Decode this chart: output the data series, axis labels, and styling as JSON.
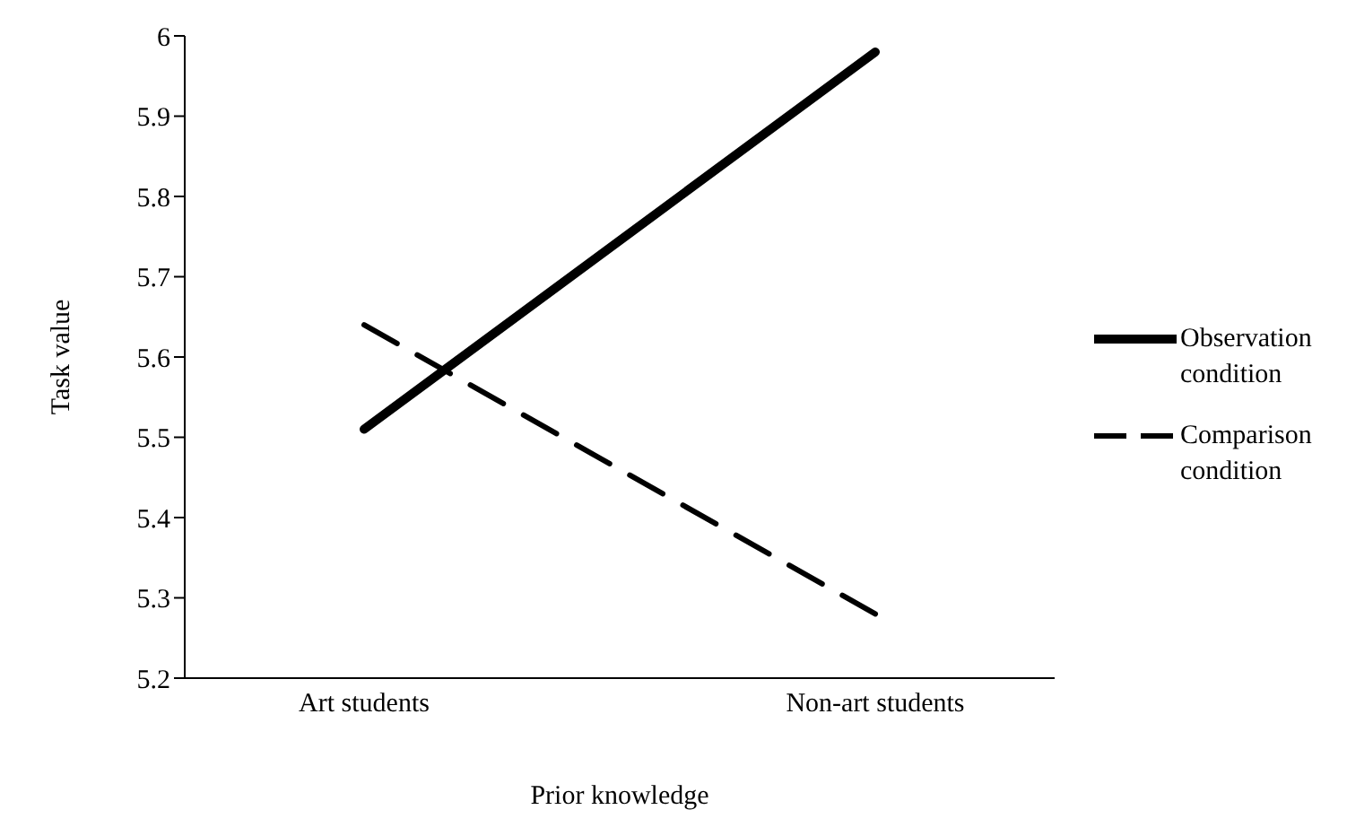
{
  "chart_data": {
    "type": "line",
    "xlabel": "Prior knowledge",
    "ylabel": "Task value",
    "categories": [
      "Art students",
      "Non-art students"
    ],
    "series": [
      {
        "name": "Observation condition",
        "color": "#000000",
        "values": [
          5.51,
          5.98
        ],
        "line_style": "solid"
      },
      {
        "name": "Comparison condition",
        "color": "#000000",
        "values": [
          5.64,
          5.28
        ],
        "line_style": "dashed"
      }
    ],
    "ylim": [
      5.2,
      6
    ],
    "yticks": [
      5.2,
      5.3,
      5.4,
      5.5,
      5.6,
      5.7,
      5.8,
      5.9,
      6
    ],
    "grid": false,
    "legend": "right",
    "marker": "none"
  }
}
